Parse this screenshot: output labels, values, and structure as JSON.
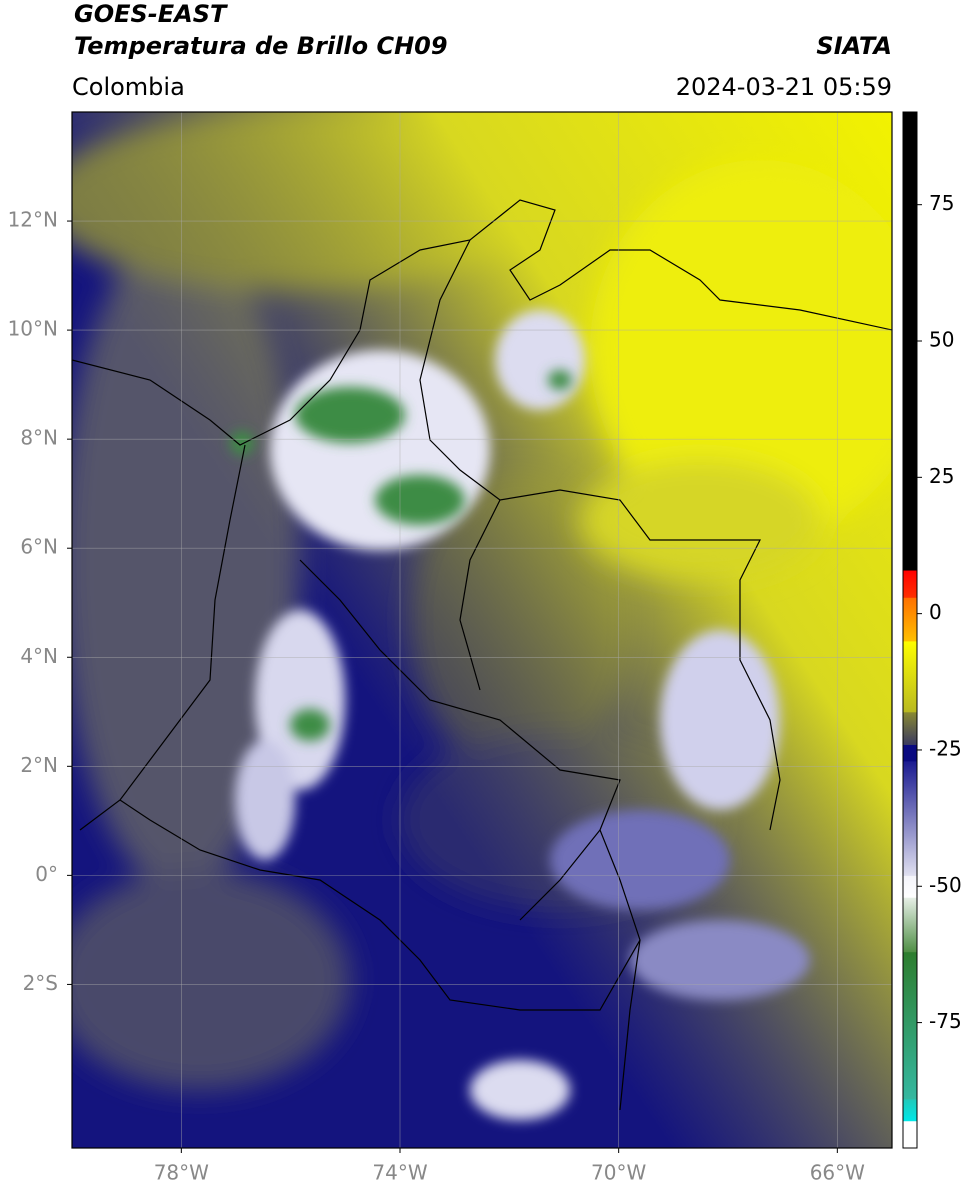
{
  "header": {
    "title": "GOES-EAST",
    "subtitle": "Temperatura de Brillo CH09",
    "source": "SIATA",
    "region": "Colombia",
    "timestamp": "2024-03-21 05:59"
  },
  "map": {
    "xlim": [
      -80,
      -65
    ],
    "ylim": [
      -5,
      14
    ],
    "xticks": [
      {
        "value": -78,
        "label": "78°W"
      },
      {
        "value": -74,
        "label": "74°W"
      },
      {
        "value": -70,
        "label": "70°W"
      },
      {
        "value": -66,
        "label": "66°W"
      }
    ],
    "yticks": [
      {
        "value": 12,
        "label": "12°N"
      },
      {
        "value": 10,
        "label": "10°N"
      },
      {
        "value": 8,
        "label": "8°N"
      },
      {
        "value": 6,
        "label": "6°N"
      },
      {
        "value": 4,
        "label": "4°N"
      },
      {
        "value": 2,
        "label": "2°N"
      },
      {
        "value": 0,
        "label": "0°"
      },
      {
        "value": -2,
        "label": "2°S"
      }
    ],
    "grid": true
  },
  "colorbar": {
    "lim": [
      -98,
      92
    ],
    "ticks": [
      75,
      50,
      25,
      0,
      -25,
      -50,
      -75
    ],
    "segments": [
      {
        "from": -98,
        "to": -93,
        "colors": [
          "#ffffff",
          "#ffffff"
        ]
      },
      {
        "from": -93,
        "to": -89,
        "colors": [
          "#00e8e8",
          "#22c8b8"
        ]
      },
      {
        "from": -89,
        "to": -62,
        "colors": [
          "#35b8a0",
          "#2e7d2e"
        ]
      },
      {
        "from": -62,
        "to": -52,
        "colors": [
          "#4f8f45",
          "#e8f0e8"
        ]
      },
      {
        "from": -52,
        "to": -48,
        "colors": [
          "#ffffff",
          "#f4f4fa"
        ]
      },
      {
        "from": -48,
        "to": -27,
        "colors": [
          "#e0e0f0",
          "#1a1a90"
        ]
      },
      {
        "from": -27,
        "to": -24,
        "colors": [
          "#0a0a80",
          "#0a0a80"
        ]
      },
      {
        "from": -24,
        "to": -18,
        "colors": [
          "#3a3a60",
          "#8a8a30"
        ]
      },
      {
        "from": -18,
        "to": -5,
        "colors": [
          "#b8b820",
          "#ffff00"
        ]
      },
      {
        "from": -5,
        "to": 3,
        "colors": [
          "#ffc000",
          "#ff7000"
        ]
      },
      {
        "from": 3,
        "to": 8,
        "colors": [
          "#ff3000",
          "#ff0000"
        ]
      },
      {
        "from": 8,
        "to": 92,
        "colors": [
          "#000000",
          "#000000"
        ]
      }
    ]
  }
}
